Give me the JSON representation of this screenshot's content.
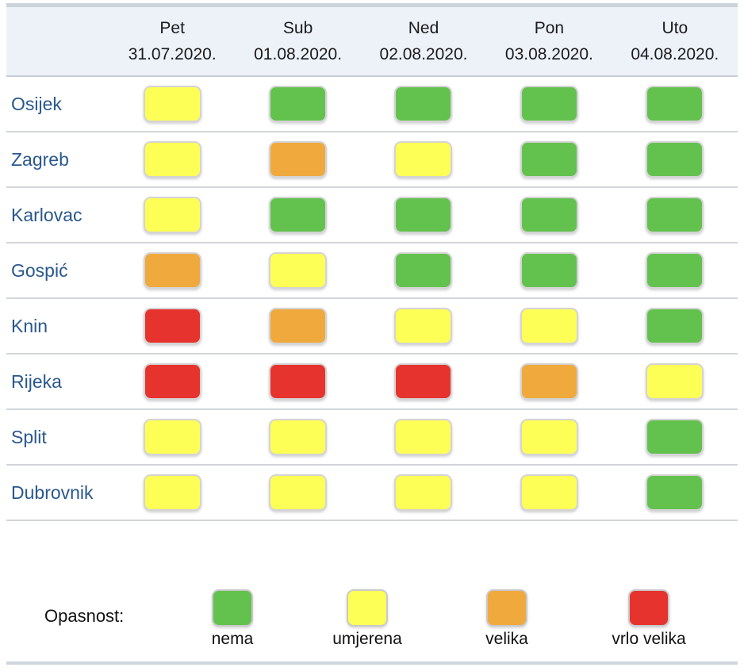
{
  "table": {
    "columns": [
      {
        "day": "Pet",
        "date": "31.07.2020."
      },
      {
        "day": "Sub",
        "date": "01.08.2020."
      },
      {
        "day": "Ned",
        "date": "02.08.2020."
      },
      {
        "day": "Pon",
        "date": "03.08.2020."
      },
      {
        "day": "Uto",
        "date": "04.08.2020."
      }
    ],
    "rows": [
      {
        "city": "Osijek",
        "levels": [
          "umjerena",
          "nema",
          "nema",
          "nema",
          "nema"
        ]
      },
      {
        "city": "Zagreb",
        "levels": [
          "umjerena",
          "velika",
          "umjerena",
          "nema",
          "nema"
        ]
      },
      {
        "city": "Karlovac",
        "levels": [
          "umjerena",
          "nema",
          "nema",
          "nema",
          "nema"
        ]
      },
      {
        "city": "Gospić",
        "levels": [
          "velika",
          "umjerena",
          "nema",
          "nema",
          "nema"
        ]
      },
      {
        "city": "Knin",
        "levels": [
          "vrlo velika",
          "velika",
          "umjerena",
          "umjerena",
          "nema"
        ]
      },
      {
        "city": "Rijeka",
        "levels": [
          "vrlo velika",
          "vrlo velika",
          "vrlo velika",
          "velika",
          "umjerena"
        ]
      },
      {
        "city": "Split",
        "levels": [
          "umjerena",
          "umjerena",
          "umjerena",
          "umjerena",
          "nema"
        ]
      },
      {
        "city": "Dubrovnik",
        "levels": [
          "umjerena",
          "umjerena",
          "umjerena",
          "umjerena",
          "nema"
        ]
      }
    ]
  },
  "legend": {
    "label": "Opasnost:",
    "items": [
      {
        "label": "nema",
        "color": "#63c14e"
      },
      {
        "label": "umjerena",
        "color": "#feff56"
      },
      {
        "label": "velika",
        "color": "#f0a93d"
      },
      {
        "label": "vrlo velika",
        "color": "#e6332d"
      }
    ]
  },
  "colors": {
    "nema": "#63c14e",
    "umjerena": "#feff56",
    "velika": "#f0a93d",
    "vrlo velika": "#e6332d",
    "header_bg": "#edf1f8",
    "city_text": "#29588e",
    "divider": "#d2d6db",
    "cell_border": "#d4d4d4",
    "top_bar": "#ccd3da"
  },
  "chart_data": {
    "type": "heatmap",
    "title": "",
    "columns": [
      "Pet 31.07.2020.",
      "Sub 01.08.2020.",
      "Ned 02.08.2020.",
      "Pon 03.08.2020.",
      "Uto 04.08.2020."
    ],
    "rows": [
      "Osijek",
      "Zagreb",
      "Karlovac",
      "Gospić",
      "Knin",
      "Rijeka",
      "Split",
      "Dubrovnik"
    ],
    "values": [
      [
        "umjerena",
        "nema",
        "nema",
        "nema",
        "nema"
      ],
      [
        "umjerena",
        "velika",
        "umjerena",
        "nema",
        "nema"
      ],
      [
        "umjerena",
        "nema",
        "nema",
        "nema",
        "nema"
      ],
      [
        "velika",
        "umjerena",
        "nema",
        "nema",
        "nema"
      ],
      [
        "vrlo velika",
        "velika",
        "umjerena",
        "umjerena",
        "nema"
      ],
      [
        "vrlo velika",
        "vrlo velika",
        "vrlo velika",
        "velika",
        "umjerena"
      ],
      [
        "umjerena",
        "umjerena",
        "umjerena",
        "umjerena",
        "nema"
      ],
      [
        "umjerena",
        "umjerena",
        "umjerena",
        "umjerena",
        "nema"
      ]
    ],
    "value_scale": [
      "nema",
      "umjerena",
      "velika",
      "vrlo velika"
    ],
    "value_colors": {
      "nema": "#63c14e",
      "umjerena": "#feff56",
      "velika": "#f0a93d",
      "vrlo velika": "#e6332d"
    },
    "legend_title": "Opasnost:",
    "legend_position": "bottom"
  }
}
